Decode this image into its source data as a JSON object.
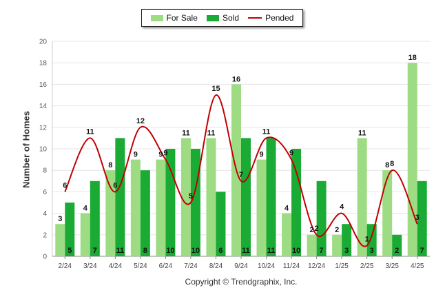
{
  "legend": {
    "for_sale_label": "For Sale",
    "sold_label": "Sold",
    "pended_label": "Pended"
  },
  "footer": {
    "copyright": "Copyright © Trendgraphix, Inc."
  },
  "colors": {
    "for_sale": "#9edc84",
    "sold": "#1aab35",
    "pended": "#c00000",
    "grid": "#e6e6e6",
    "axis": "#888888"
  },
  "chart_data": {
    "type": "bar",
    "categories": [
      "2/24",
      "3/24",
      "4/24",
      "5/24",
      "6/24",
      "7/24",
      "8/24",
      "9/24",
      "10/24",
      "11/24",
      "12/24",
      "1/25",
      "2/25",
      "3/25",
      "4/25"
    ],
    "series": [
      {
        "name": "For Sale",
        "type": "bar",
        "values": [
          3,
          4,
          8,
          9,
          9,
          11,
          11,
          16,
          9,
          4,
          2,
          2,
          11,
          8,
          18
        ]
      },
      {
        "name": "Sold",
        "type": "bar",
        "values": [
          5,
          7,
          11,
          8,
          10,
          10,
          6,
          11,
          11,
          10,
          7,
          3,
          3,
          2,
          7
        ]
      },
      {
        "name": "Pended",
        "type": "line",
        "values": [
          6,
          11,
          6,
          12,
          9,
          5,
          15,
          7,
          11,
          9,
          2,
          4,
          1,
          8,
          3
        ]
      }
    ],
    "ylabel": "Number of Homes",
    "xlabel": "",
    "ylim": [
      0,
      20
    ],
    "yticks": [
      0,
      2,
      4,
      6,
      8,
      10,
      12,
      14,
      16,
      18,
      20
    ],
    "grid": true,
    "legend_position": "top-center"
  }
}
